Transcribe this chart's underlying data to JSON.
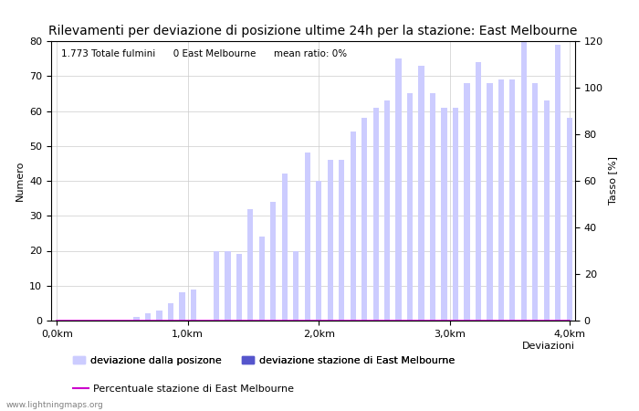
{
  "title": "Rilevamenti per deviazione di posizione ultime 24h per la stazione: East Melbourne",
  "info_text": "1.773 Totale fulmini      0 East Melbourne      mean ratio: 0%",
  "ylabel_left": "Numero",
  "ylabel_right": "Tasso [%]",
  "xlabel": "Deviazioni",
  "bar_color_light": "#ccccff",
  "bar_color_dark": "#5555cc",
  "line_color": "#cc00cc",
  "background_color": "#ffffff",
  "grid_color": "#cccccc",
  "ylim_left": [
    0,
    80
  ],
  "ylim_right": [
    0,
    120
  ],
  "yticks_left": [
    0,
    10,
    20,
    30,
    40,
    50,
    60,
    70,
    80
  ],
  "yticks_right": [
    0,
    20,
    40,
    60,
    80,
    100,
    120
  ],
  "xtick_labels": [
    "0,0km",
    "1,0km",
    "2,0km",
    "3,0km",
    "4,0km"
  ],
  "num_bars": 46,
  "bar_values": [
    0,
    0,
    0,
    0,
    0,
    0,
    0,
    1,
    2,
    3,
    5,
    8,
    9,
    0,
    20,
    20,
    19,
    32,
    24,
    34,
    42,
    20,
    48,
    40,
    46,
    46,
    54,
    58,
    61,
    63,
    75,
    65,
    73,
    65,
    61,
    61,
    68,
    74,
    68,
    69,
    69,
    80,
    68,
    63,
    79,
    58
  ],
  "station_values": [
    0,
    0,
    0,
    0,
    0,
    0,
    0,
    0,
    0,
    0,
    0,
    0,
    0,
    0,
    0,
    0,
    0,
    0,
    0,
    0,
    0,
    0,
    0,
    0,
    0,
    0,
    0,
    0,
    0,
    0,
    0,
    0,
    0,
    0,
    0,
    0,
    0,
    0,
    0,
    0,
    0,
    0,
    0,
    0,
    0,
    0
  ],
  "ratio_values": [
    0,
    0,
    0,
    0,
    0,
    0,
    0,
    0,
    0,
    0,
    0,
    0,
    0,
    0,
    0,
    0,
    0,
    0,
    0,
    0,
    0,
    0,
    0,
    0,
    0,
    0,
    0,
    0,
    0,
    0,
    0,
    0,
    0,
    0,
    0,
    0,
    0,
    0,
    0,
    0,
    0,
    0,
    0,
    0,
    0,
    0
  ],
  "legend_light": "deviazione dalla posizone",
  "legend_dark": "deviazione stazione di East Melbourne",
  "legend_line": "Percentuale stazione di East Melbourne",
  "watermark": "www.lightningmaps.org",
  "title_fontsize": 10,
  "axis_fontsize": 8,
  "tick_fontsize": 8,
  "legend_fontsize": 8
}
